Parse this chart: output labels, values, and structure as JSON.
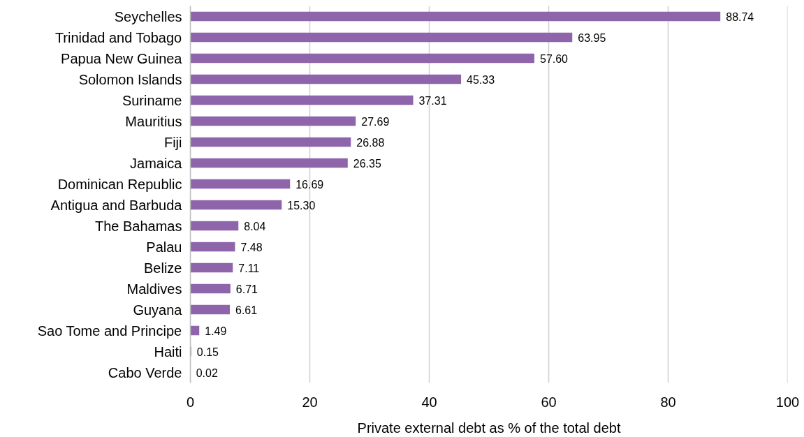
{
  "chart_data": {
    "type": "bar",
    "orientation": "horizontal",
    "categories": [
      "Seychelles",
      "Trinidad and Tobago",
      "Papua New Guinea",
      "Solomon Islands",
      "Suriname",
      "Mauritius",
      "Fiji",
      "Jamaica",
      "Dominican Republic",
      "Antigua and Barbuda",
      "The Bahamas",
      "Palau",
      "Belize",
      "Maldives",
      "Guyana",
      "Sao Tome and Principe",
      "Haiti",
      "Cabo Verde"
    ],
    "values": [
      88.74,
      63.95,
      57.6,
      45.33,
      37.31,
      27.69,
      26.88,
      26.35,
      16.69,
      15.3,
      8.04,
      7.48,
      7.11,
      6.71,
      6.61,
      1.49,
      0.15,
      0.02
    ],
    "value_labels": [
      "88.74",
      "63.95",
      "57.60",
      "45.33",
      "37.31",
      "27.69",
      "26.88",
      "26.35",
      "16.69",
      "15.30",
      "8.04",
      "7.48",
      "7.11",
      "6.71",
      "6.61",
      "1.49",
      "0.15",
      "0.02"
    ],
    "color": "#8e64aa",
    "xlabel": "Private external debt as % of the total debt",
    "xlim": [
      0,
      100
    ],
    "xticks": [
      0,
      20,
      40,
      60,
      80,
      100
    ],
    "grid": "x"
  }
}
